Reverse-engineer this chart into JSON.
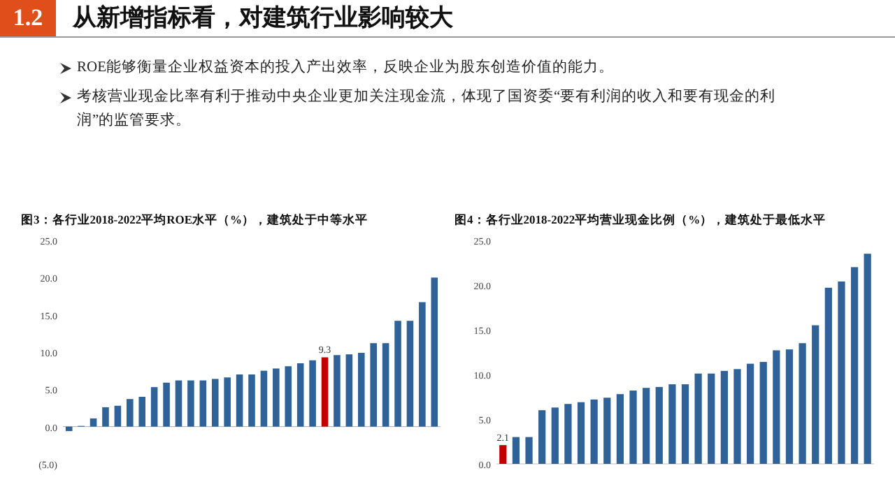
{
  "chart_data": [
    {
      "type": "other",
      "title": "从新增指标看，对建筑行业影响较大",
      "annotations": [
        "1.2",
        "ROE能够衡量企业权益资本的投入产出效率，反映企业为股东创造价值的能力。",
        "考核营业现金比率有利于推动中央企业更加关注现金流，体现了国资委“要有利润的收入和要有现金的利润”的监管要求。"
      ]
    },
    {
      "type": "bar",
      "title": "图3：各行业2018-2022平均ROE水平（%），建筑处于中等水平",
      "categories": [
        null,
        null,
        null,
        null,
        null,
        null,
        null,
        null,
        null,
        null,
        null,
        null,
        null,
        null,
        null,
        null,
        null,
        null,
        null,
        null,
        null,
        null,
        null,
        null,
        null,
        null,
        null,
        null,
        null,
        null,
        null
      ],
      "values": [
        -0.6,
        0.1,
        1.1,
        2.6,
        2.8,
        3.7,
        4.0,
        5.3,
        5.9,
        6.2,
        6.2,
        6.2,
        6.4,
        6.6,
        7.0,
        7.0,
        7.5,
        7.8,
        8.1,
        8.5,
        8.9,
        9.3,
        9.6,
        9.7,
        9.9,
        11.2,
        11.2,
        14.2,
        14.2,
        16.7,
        20.0
      ],
      "colors": [
        "#2e6299",
        "#2e6299",
        "#2e6299",
        "#2e6299",
        "#2e6299",
        "#2e6299",
        "#2e6299",
        "#2e6299",
        "#2e6299",
        "#2e6299",
        "#2e6299",
        "#2e6299",
        "#2e6299",
        "#2e6299",
        "#2e6299",
        "#2e6299",
        "#2e6299",
        "#2e6299",
        "#2e6299",
        "#2e6299",
        "#2e6299",
        "#c00000",
        "#2e6299",
        "#2e6299",
        "#2e6299",
        "#2e6299",
        "#2e6299",
        "#2e6299",
        "#2e6299",
        "#2e6299",
        "#2e6299"
      ],
      "value_labels": [
        null,
        null,
        null,
        null,
        null,
        null,
        null,
        null,
        null,
        null,
        null,
        null,
        null,
        null,
        null,
        null,
        null,
        null,
        null,
        null,
        null,
        "9.3",
        null,
        null,
        null,
        null,
        null,
        null,
        null,
        null,
        null
      ],
      "ylim": [
        -5,
        25
      ],
      "yticks": [
        {
          "value": -5,
          "label": "(5.0)"
        },
        {
          "value": 0,
          "label": "0.0"
        },
        {
          "value": 5,
          "label": "5.0"
        },
        {
          "value": 10,
          "label": "10.0"
        },
        {
          "value": 15,
          "label": "15.0"
        },
        {
          "value": 20,
          "label": "20.0"
        },
        {
          "value": 25,
          "label": "25.0"
        }
      ]
    },
    {
      "type": "bar",
      "title": "图4：各行业2018-2022平均营业现金比例（%），建筑处于最低水平",
      "categories": [
        null,
        null,
        null,
        null,
        null,
        null,
        null,
        null,
        null,
        null,
        null,
        null,
        null,
        null,
        null,
        null,
        null,
        null,
        null,
        null,
        null,
        null,
        null,
        null,
        null,
        null,
        null,
        null,
        null
      ],
      "values": [
        2.1,
        3.0,
        3.0,
        6.0,
        6.3,
        6.7,
        6.9,
        7.2,
        7.4,
        7.8,
        8.2,
        8.5,
        8.6,
        8.9,
        8.9,
        10.1,
        10.1,
        10.4,
        10.6,
        11.2,
        11.4,
        12.7,
        12.8,
        13.5,
        15.5,
        19.7,
        20.4,
        22.0,
        23.5
      ],
      "colors": [
        "#c00000",
        "#2e6299",
        "#2e6299",
        "#2e6299",
        "#2e6299",
        "#2e6299",
        "#2e6299",
        "#2e6299",
        "#2e6299",
        "#2e6299",
        "#2e6299",
        "#2e6299",
        "#2e6299",
        "#2e6299",
        "#2e6299",
        "#2e6299",
        "#2e6299",
        "#2e6299",
        "#2e6299",
        "#2e6299",
        "#2e6299",
        "#2e6299",
        "#2e6299",
        "#2e6299",
        "#2e6299",
        "#2e6299",
        "#2e6299",
        "#2e6299",
        "#2e6299"
      ],
      "value_labels": [
        "2.1",
        null,
        null,
        null,
        null,
        null,
        null,
        null,
        null,
        null,
        null,
        null,
        null,
        null,
        null,
        null,
        null,
        null,
        null,
        null,
        null,
        null,
        null,
        null,
        null,
        null,
        null,
        null,
        null
      ],
      "ylim": [
        0,
        25
      ],
      "yticks": [
        {
          "value": 0,
          "label": "0.0"
        },
        {
          "value": 5,
          "label": "5.0"
        },
        {
          "value": 10,
          "label": "10.0"
        },
        {
          "value": 15,
          "label": "15.0"
        },
        {
          "value": 20,
          "label": "20.0"
        },
        {
          "value": 25,
          "label": "25.0"
        }
      ]
    }
  ]
}
